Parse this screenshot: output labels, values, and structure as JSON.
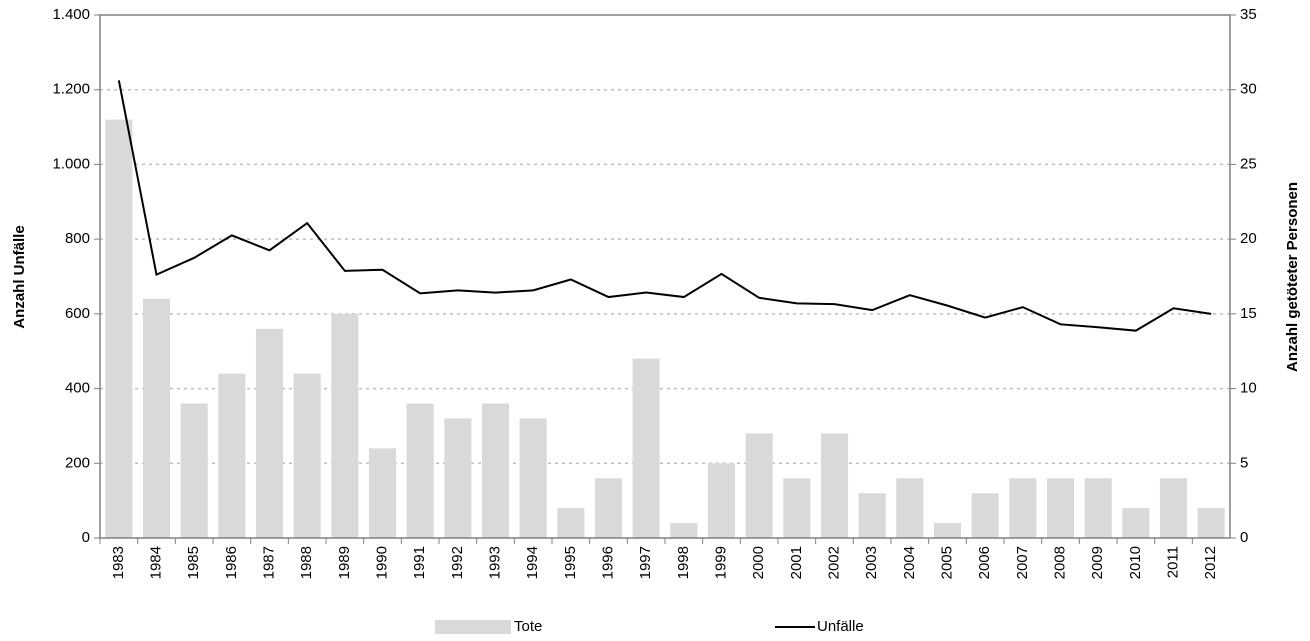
{
  "chart_data": {
    "type": "bar-line",
    "categories": [
      "1983",
      "1984",
      "1985",
      "1986",
      "1987",
      "1988",
      "1989",
      "1990",
      "1991",
      "1992",
      "1993",
      "1994",
      "1995",
      "1996",
      "1997",
      "1998",
      "1999",
      "2000",
      "2001",
      "2002",
      "2003",
      "2004",
      "2005",
      "2006",
      "2007",
      "2008",
      "2009",
      "2010",
      "2011",
      "2012"
    ],
    "series": [
      {
        "name": "Tote",
        "type": "bar",
        "axis": "y2",
        "color": "#d9d9d9",
        "values": [
          28,
          16,
          9,
          11,
          14,
          11,
          15,
          6,
          9,
          8,
          9,
          8,
          2,
          4,
          12,
          1,
          5,
          7,
          4,
          7,
          3,
          4,
          1,
          3,
          4,
          4,
          4,
          2,
          4,
          2
        ]
      },
      {
        "name": "Unfälle",
        "type": "line",
        "axis": "y",
        "color": "#000000",
        "values": [
          1225,
          705,
          750,
          810,
          770,
          843,
          715,
          718,
          655,
          663,
          657,
          663,
          692,
          645,
          657,
          645,
          707,
          643,
          628,
          626,
          610,
          650,
          622,
          590,
          618,
          572,
          564,
          555,
          615,
          600
        ]
      }
    ],
    "ylabel": "Anzahl Unfälle",
    "y2label": "Anzahl getöteter Personen",
    "ylim": [
      0,
      1400
    ],
    "yticks": [
      0,
      200,
      400,
      600,
      800,
      {
        "value": 1000,
        "label": "1.000"
      },
      {
        "value": 1200,
        "label": "1.200"
      },
      {
        "value": 1400,
        "label": "1.400"
      }
    ],
    "y2lim": [
      0,
      35
    ],
    "y2ticks": [
      0,
      5,
      10,
      15,
      20,
      25,
      30,
      35
    ],
    "grid": true,
    "legend": "bottom"
  }
}
